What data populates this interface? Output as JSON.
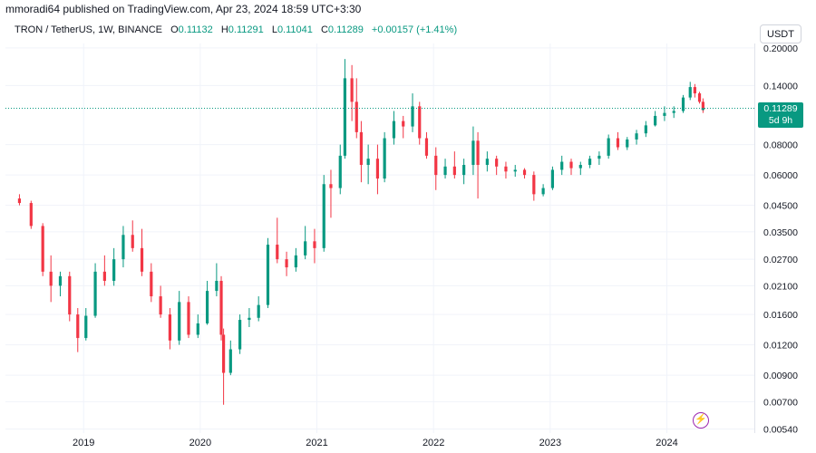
{
  "header": {
    "publisher_line": "mmoradi64 published on TradingView.com, Apr 23, 2024 18:59 UTC+3:30",
    "symbol": "TRON / TetherUS, 1W, BINANCE",
    "ohlc": {
      "open_label": "O",
      "open": "0.11132",
      "high_label": "H",
      "high": "0.11291",
      "low_label": "L",
      "low": "0.11041",
      "close_label": "C",
      "close": "0.11289",
      "change": "+0.00157 (+1.41%)"
    }
  },
  "currency_button": "USDT",
  "price_label": {
    "price": "0.11289",
    "countdown": "5d 9h"
  },
  "colors": {
    "up": "#089981",
    "down": "#f23645",
    "grid": "#f0f3fa",
    "accent_icon": "#9c27b0"
  },
  "icons": {
    "bolt": "lightning-icon"
  },
  "chart_data": {
    "type": "candlestick",
    "scale": "log",
    "grid": true,
    "current_price": 0.11289,
    "y_ticks": [
      "0.20000",
      "0.14000",
      "0.08000",
      "0.06000",
      "0.04500",
      "0.03500",
      "0.02700",
      "0.02100",
      "0.01600",
      "0.01200",
      "0.00900",
      "0.00700",
      "0.00540"
    ],
    "x_ticks": [
      "2019",
      "2020",
      "2021",
      "2022",
      "2023",
      "2024"
    ],
    "ylim": [
      0.0052,
      0.205
    ],
    "series": [
      {
        "values": [
          [
            2018.45,
            0.048,
            0.05,
            0.045,
            0.046
          ],
          [
            2018.55,
            0.046,
            0.047,
            0.036,
            0.037
          ],
          [
            2018.65,
            0.037,
            0.038,
            0.023,
            0.024
          ],
          [
            2018.72,
            0.024,
            0.028,
            0.018,
            0.021
          ],
          [
            2018.8,
            0.021,
            0.024,
            0.019,
            0.023
          ],
          [
            2018.88,
            0.023,
            0.024,
            0.015,
            0.016
          ],
          [
            2018.95,
            0.016,
            0.017,
            0.0112,
            0.0128
          ],
          [
            2019.02,
            0.0128,
            0.017,
            0.0125,
            0.0158
          ],
          [
            2019.1,
            0.0158,
            0.026,
            0.0155,
            0.024
          ],
          [
            2019.18,
            0.024,
            0.028,
            0.021,
            0.022
          ],
          [
            2019.26,
            0.022,
            0.03,
            0.021,
            0.027
          ],
          [
            2019.34,
            0.027,
            0.037,
            0.025,
            0.034
          ],
          [
            2019.42,
            0.034,
            0.039,
            0.029,
            0.03
          ],
          [
            2019.5,
            0.03,
            0.036,
            0.023,
            0.024
          ],
          [
            2019.58,
            0.024,
            0.026,
            0.018,
            0.019
          ],
          [
            2019.66,
            0.019,
            0.021,
            0.0155,
            0.016
          ],
          [
            2019.74,
            0.016,
            0.017,
            0.0115,
            0.0125
          ],
          [
            2019.82,
            0.0125,
            0.02,
            0.012,
            0.018
          ],
          [
            2019.9,
            0.018,
            0.019,
            0.0128,
            0.0132
          ],
          [
            2019.98,
            0.0132,
            0.016,
            0.0128,
            0.0147
          ],
          [
            2020.06,
            0.0147,
            0.022,
            0.0145,
            0.02
          ],
          [
            2020.14,
            0.02,
            0.026,
            0.019,
            0.022
          ],
          [
            2020.18,
            0.022,
            0.023,
            0.0125,
            0.0132
          ],
          [
            2020.2,
            0.0132,
            0.014,
            0.0068,
            0.0092
          ],
          [
            2020.26,
            0.0092,
            0.0125,
            0.009,
            0.0115
          ],
          [
            2020.34,
            0.0115,
            0.016,
            0.011,
            0.0152
          ],
          [
            2020.42,
            0.0152,
            0.017,
            0.0142,
            0.0155
          ],
          [
            2020.5,
            0.0155,
            0.019,
            0.015,
            0.0175
          ],
          [
            2020.58,
            0.0175,
            0.033,
            0.017,
            0.031
          ],
          [
            2020.66,
            0.031,
            0.04,
            0.026,
            0.027
          ],
          [
            2020.74,
            0.027,
            0.029,
            0.023,
            0.025
          ],
          [
            2020.82,
            0.025,
            0.03,
            0.024,
            0.028
          ],
          [
            2020.9,
            0.028,
            0.037,
            0.027,
            0.032
          ],
          [
            2020.98,
            0.032,
            0.036,
            0.026,
            0.03
          ],
          [
            2021.06,
            0.03,
            0.06,
            0.029,
            0.055
          ],
          [
            2021.12,
            0.055,
            0.063,
            0.04,
            0.053
          ],
          [
            2021.2,
            0.053,
            0.08,
            0.05,
            0.072
          ],
          [
            2021.24,
            0.072,
            0.18,
            0.07,
            0.15
          ],
          [
            2021.3,
            0.15,
            0.17,
            0.1,
            0.12
          ],
          [
            2021.34,
            0.12,
            0.15,
            0.085,
            0.09
          ],
          [
            2021.38,
            0.09,
            0.1,
            0.056,
            0.066
          ],
          [
            2021.44,
            0.066,
            0.08,
            0.055,
            0.07
          ],
          [
            2021.52,
            0.07,
            0.08,
            0.05,
            0.058
          ],
          [
            2021.58,
            0.058,
            0.09,
            0.056,
            0.085
          ],
          [
            2021.66,
            0.085,
            0.11,
            0.08,
            0.1
          ],
          [
            2021.74,
            0.1,
            0.105,
            0.085,
            0.095
          ],
          [
            2021.82,
            0.095,
            0.13,
            0.09,
            0.115
          ],
          [
            2021.88,
            0.115,
            0.12,
            0.08,
            0.085
          ],
          [
            2021.94,
            0.085,
            0.09,
            0.07,
            0.072
          ],
          [
            2022.02,
            0.072,
            0.078,
            0.052,
            0.06
          ],
          [
            2022.1,
            0.06,
            0.07,
            0.058,
            0.065
          ],
          [
            2022.18,
            0.065,
            0.075,
            0.058,
            0.06
          ],
          [
            2022.26,
            0.06,
            0.07,
            0.055,
            0.066
          ],
          [
            2022.34,
            0.066,
            0.095,
            0.06,
            0.083
          ],
          [
            2022.38,
            0.083,
            0.09,
            0.048,
            0.066
          ],
          [
            2022.46,
            0.066,
            0.075,
            0.062,
            0.07
          ],
          [
            2022.54,
            0.07,
            0.072,
            0.06,
            0.065
          ],
          [
            2022.62,
            0.065,
            0.068,
            0.058,
            0.062
          ],
          [
            2022.7,
            0.062,
            0.066,
            0.059,
            0.063
          ],
          [
            2022.78,
            0.063,
            0.064,
            0.058,
            0.06
          ],
          [
            2022.86,
            0.06,
            0.062,
            0.047,
            0.05
          ],
          [
            2022.94,
            0.05,
            0.055,
            0.049,
            0.053
          ],
          [
            2023.02,
            0.053,
            0.065,
            0.052,
            0.063
          ],
          [
            2023.1,
            0.063,
            0.072,
            0.06,
            0.068
          ],
          [
            2023.18,
            0.068,
            0.07,
            0.06,
            0.064
          ],
          [
            2023.26,
            0.064,
            0.068,
            0.06,
            0.066
          ],
          [
            2023.34,
            0.066,
            0.072,
            0.064,
            0.07
          ],
          [
            2023.42,
            0.07,
            0.075,
            0.066,
            0.072
          ],
          [
            2023.5,
            0.072,
            0.088,
            0.07,
            0.085
          ],
          [
            2023.58,
            0.085,
            0.09,
            0.076,
            0.078
          ],
          [
            2023.66,
            0.078,
            0.086,
            0.076,
            0.084
          ],
          [
            2023.74,
            0.084,
            0.092,
            0.08,
            0.089
          ],
          [
            2023.82,
            0.089,
            0.1,
            0.086,
            0.096
          ],
          [
            2023.9,
            0.096,
            0.11,
            0.095,
            0.105
          ],
          [
            2023.98,
            0.105,
            0.115,
            0.1,
            0.108
          ],
          [
            2024.06,
            0.108,
            0.115,
            0.103,
            0.11
          ],
          [
            2024.14,
            0.11,
            0.128,
            0.108,
            0.125
          ],
          [
            2024.2,
            0.125,
            0.145,
            0.122,
            0.138
          ],
          [
            2024.24,
            0.138,
            0.142,
            0.125,
            0.13
          ],
          [
            2024.28,
            0.13,
            0.132,
            0.118,
            0.12
          ],
          [
            2024.31,
            0.12,
            0.124,
            0.108,
            0.111
          ],
          [
            2024.31,
            0.11132,
            0.11291,
            0.11041,
            0.11289
          ]
        ]
      }
    ]
  }
}
